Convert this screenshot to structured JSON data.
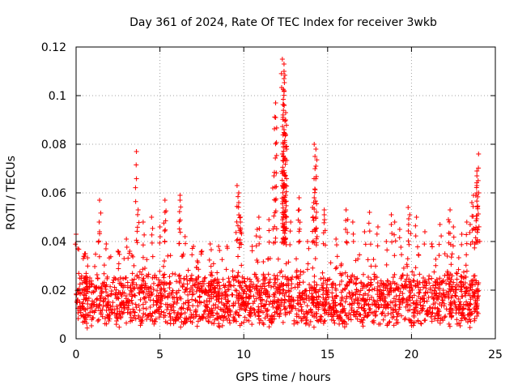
{
  "chart_data": {
    "type": "scatter",
    "title": "Day 361 of 2024, Rate Of TEC Index for receiver 3wkb",
    "xlabel": "GPS time / hours",
    "ylabel": "ROTI / TECUs",
    "xlim": [
      0,
      25
    ],
    "ylim": [
      0,
      0.12
    ],
    "xticks": [
      0,
      5,
      10,
      15,
      20,
      25
    ],
    "xtick_labels": [
      "0",
      "5",
      "10",
      "15",
      "20",
      "25"
    ],
    "yticks": [
      0,
      0.02,
      0.04,
      0.06,
      0.08,
      0.1,
      0.12
    ],
    "ytick_labels": [
      "0",
      "0.02",
      "0.04",
      "0.06",
      "0.08",
      "0.1",
      "0.12"
    ],
    "grid": true,
    "marker": "+",
    "color": "#ff0000",
    "series": [
      {
        "name": "ROTI",
        "band": {
          "x_range": [
            0,
            24
          ],
          "typical_min": 0.006,
          "typical_max": 0.035,
          "median": 0.016
        },
        "peaks": [
          [
            0.0,
            0.043
          ],
          [
            0.1,
            0.037
          ],
          [
            0.5,
            0.034
          ],
          [
            1.4,
            0.057
          ],
          [
            1.4,
            0.044
          ],
          [
            1.8,
            0.039
          ],
          [
            2.5,
            0.036
          ],
          [
            3.0,
            0.041
          ],
          [
            3.2,
            0.036
          ],
          [
            3.6,
            0.077
          ],
          [
            3.7,
            0.053
          ],
          [
            4.0,
            0.048
          ],
          [
            4.5,
            0.05
          ],
          [
            5.0,
            0.046
          ],
          [
            5.3,
            0.057
          ],
          [
            5.3,
            0.052
          ],
          [
            6.2,
            0.059
          ],
          [
            6.2,
            0.057
          ],
          [
            6.5,
            0.042
          ],
          [
            7.0,
            0.038
          ],
          [
            7.5,
            0.036
          ],
          [
            8.0,
            0.039
          ],
          [
            8.5,
            0.038
          ],
          [
            9.0,
            0.038
          ],
          [
            9.6,
            0.063
          ],
          [
            9.7,
            0.06
          ],
          [
            9.7,
            0.056
          ],
          [
            9.8,
            0.05
          ],
          [
            9.8,
            0.048
          ],
          [
            9.8,
            0.045
          ],
          [
            10.5,
            0.038
          ],
          [
            10.8,
            0.045
          ],
          [
            10.9,
            0.05
          ],
          [
            11.5,
            0.049
          ],
          [
            11.8,
            0.067
          ],
          [
            11.9,
            0.097
          ],
          [
            11.9,
            0.091
          ],
          [
            12.3,
            0.115
          ],
          [
            12.4,
            0.113
          ],
          [
            12.4,
            0.11
          ],
          [
            12.4,
            0.107
          ],
          [
            12.4,
            0.102
          ],
          [
            12.5,
            0.093
          ],
          [
            12.5,
            0.09
          ],
          [
            12.4,
            0.086
          ],
          [
            12.5,
            0.084
          ],
          [
            12.3,
            0.076
          ],
          [
            12.3,
            0.068
          ],
          [
            12.4,
            0.062
          ],
          [
            12.5,
            0.059
          ],
          [
            12.5,
            0.053
          ],
          [
            12.8,
            0.048
          ],
          [
            13.3,
            0.058
          ],
          [
            13.3,
            0.053
          ],
          [
            13.8,
            0.04
          ],
          [
            14.2,
            0.08
          ],
          [
            14.3,
            0.078
          ],
          [
            14.3,
            0.071
          ],
          [
            14.2,
            0.058
          ],
          [
            14.1,
            0.054
          ],
          [
            14.3,
            0.05
          ],
          [
            14.8,
            0.053
          ],
          [
            14.8,
            0.051
          ],
          [
            15.5,
            0.041
          ],
          [
            16.1,
            0.053
          ],
          [
            16.2,
            0.049
          ],
          [
            16.5,
            0.048
          ],
          [
            17.2,
            0.044
          ],
          [
            17.5,
            0.052
          ],
          [
            18.0,
            0.046
          ],
          [
            18.5,
            0.04
          ],
          [
            18.8,
            0.051
          ],
          [
            19.0,
            0.048
          ],
          [
            19.3,
            0.045
          ],
          [
            19.8,
            0.054
          ],
          [
            19.9,
            0.051
          ],
          [
            20.3,
            0.05
          ],
          [
            20.8,
            0.044
          ],
          [
            21.2,
            0.039
          ],
          [
            21.7,
            0.047
          ],
          [
            22.2,
            0.049
          ],
          [
            22.3,
            0.053
          ],
          [
            22.5,
            0.046
          ],
          [
            23.0,
            0.043
          ],
          [
            23.3,
            0.048
          ],
          [
            23.5,
            0.047
          ],
          [
            23.6,
            0.056
          ],
          [
            23.7,
            0.059
          ],
          [
            23.9,
            0.06
          ],
          [
            23.9,
            0.069
          ],
          [
            23.9,
            0.067
          ],
          [
            24.0,
            0.076
          ],
          [
            23.9,
            0.063
          ],
          [
            23.8,
            0.045
          ]
        ]
      }
    ]
  }
}
